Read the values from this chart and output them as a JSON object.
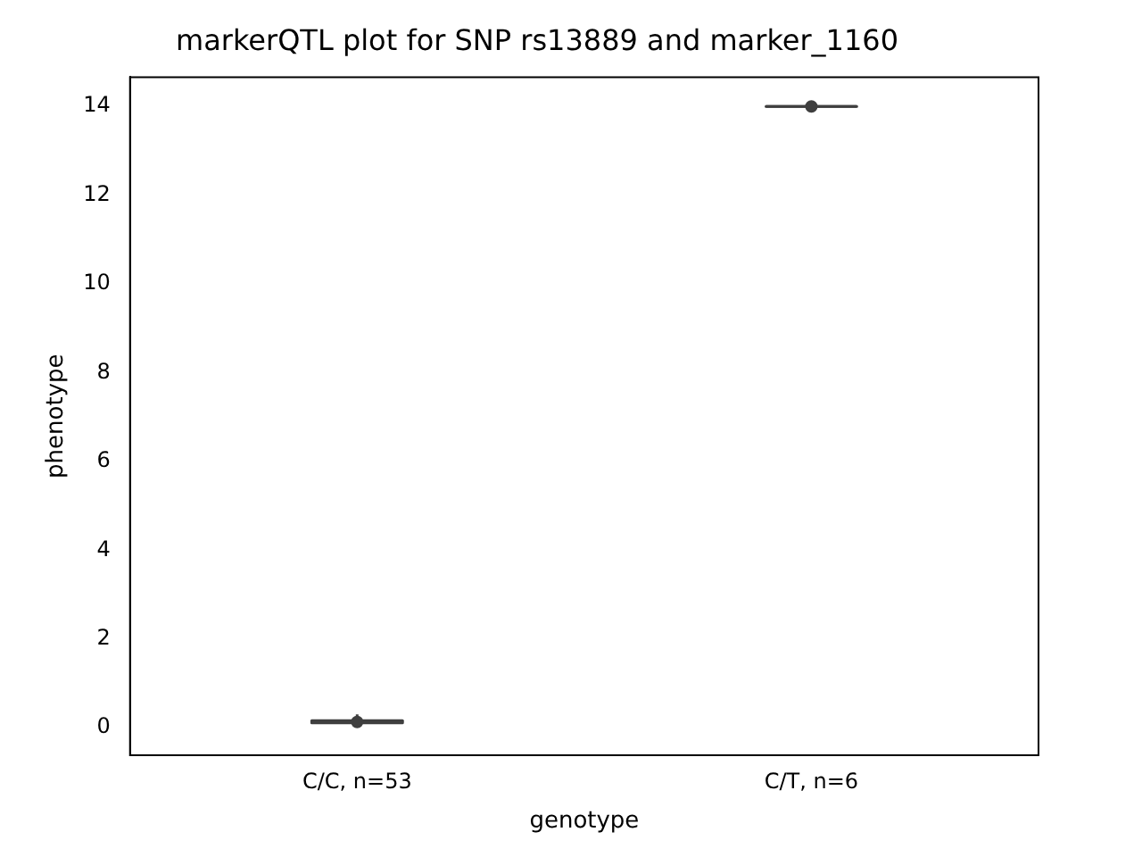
{
  "chart_data": {
    "type": "box",
    "title": "markerQTL plot for SNP rs13889 and marker_1160",
    "xlabel": "genotype",
    "ylabel": "phenotype",
    "categories": [
      "C/C, n=53",
      "C/T, n=6"
    ],
    "boxes": [
      {
        "low": 0.05,
        "q1": 0.11,
        "median": 0.13,
        "q3": 0.16,
        "high": 0.3
      },
      {
        "low": 14,
        "q1": 14,
        "median": 14,
        "q3": 14,
        "high": 14
      }
    ],
    "color": "#3f3f3f",
    "series": [
      {
        "type": "scatter",
        "color": "#3f3f3f",
        "x": [
          "C/C, n=53",
          "C/T, n=6"
        ],
        "values": [
          0.13,
          14
        ]
      }
    ],
    "ylim": [
      -0.62,
      14.66
    ],
    "yticks": [
      0,
      2,
      4,
      6,
      8,
      10,
      12,
      14
    ],
    "grid": false,
    "legend": false,
    "marker": "circle"
  }
}
